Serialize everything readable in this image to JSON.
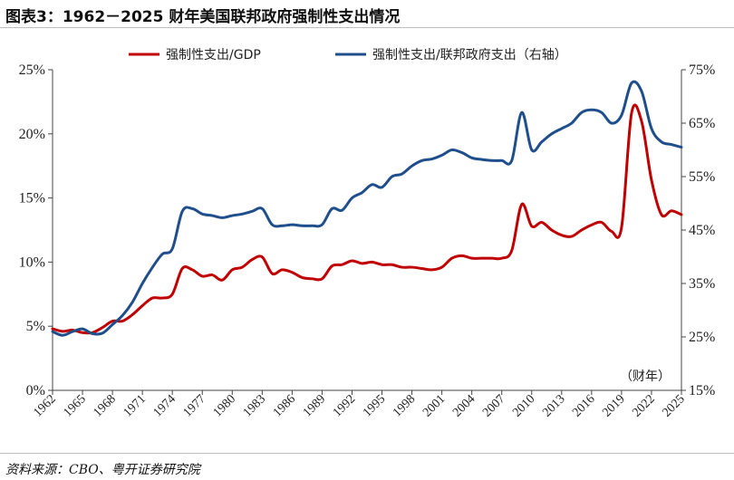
{
  "title": "图表3：1962－2025 财年美国联邦政府强制性支出情况",
  "source": "资料来源：CBO、粤开证券研究院",
  "colors": {
    "red": "#c00000",
    "blue": "#1f4e8c",
    "axis": "#444444"
  },
  "chart_data": {
    "type": "line",
    "x_unit_label": "（财年）",
    "x_ticks": [
      "1962",
      "1965",
      "1968",
      "1971",
      "1974",
      "1977",
      "1980",
      "1983",
      "1986",
      "1989",
      "1992",
      "1995",
      "1998",
      "2001",
      "2004",
      "2007",
      "2010",
      "2013",
      "2016",
      "2019",
      "2022",
      "2025"
    ],
    "y_left": {
      "ticks": [
        "0%",
        "5%",
        "10%",
        "15%",
        "20%",
        "25%"
      ],
      "lim": [
        0,
        25
      ]
    },
    "y_right": {
      "ticks": [
        "15%",
        "25%",
        "35%",
        "45%",
        "55%",
        "65%",
        "75%"
      ],
      "lim": [
        15,
        75
      ]
    },
    "x": [
      1962,
      1963,
      1964,
      1965,
      1966,
      1967,
      1968,
      1969,
      1970,
      1971,
      1972,
      1973,
      1974,
      1975,
      1976,
      1977,
      1978,
      1979,
      1980,
      1981,
      1982,
      1983,
      1984,
      1985,
      1986,
      1987,
      1988,
      1989,
      1990,
      1991,
      1992,
      1993,
      1994,
      1995,
      1996,
      1997,
      1998,
      1999,
      2000,
      2001,
      2002,
      2003,
      2004,
      2005,
      2006,
      2007,
      2008,
      2009,
      2010,
      2011,
      2012,
      2013,
      2014,
      2015,
      2016,
      2017,
      2018,
      2019,
      2020,
      2021,
      2022,
      2023,
      2024,
      2025
    ],
    "series": [
      {
        "name": "强制性支出/GDP",
        "axis": "left",
        "color": "#c00000",
        "values": [
          4.8,
          4.6,
          4.7,
          4.5,
          4.5,
          4.9,
          5.4,
          5.4,
          5.9,
          6.6,
          7.2,
          7.2,
          7.5,
          9.5,
          9.4,
          8.9,
          9.0,
          8.6,
          9.4,
          9.6,
          10.2,
          10.4,
          9.1,
          9.4,
          9.2,
          8.8,
          8.7,
          8.7,
          9.7,
          9.8,
          10.1,
          9.9,
          10.0,
          9.8,
          9.8,
          9.6,
          9.6,
          9.5,
          9.4,
          9.6,
          10.3,
          10.5,
          10.3,
          10.3,
          10.3,
          10.3,
          10.9,
          14.5,
          12.8,
          13.1,
          12.5,
          12.1,
          12.0,
          12.5,
          12.9,
          13.1,
          12.4,
          12.7,
          21.6,
          21.0,
          16.4,
          13.7,
          14.0,
          13.7
        ]
      },
      {
        "name": "强制性支出/联邦政府支出（右轴）",
        "axis": "right",
        "color": "#1f4e8c",
        "values": [
          26.0,
          25.3,
          26.0,
          26.5,
          25.6,
          25.7,
          27.3,
          29.0,
          31.5,
          35.0,
          38.0,
          40.5,
          41.5,
          48.5,
          49.0,
          48.0,
          47.7,
          47.3,
          47.7,
          48.0,
          48.5,
          49.0,
          46.0,
          45.8,
          46.0,
          45.8,
          45.8,
          46.0,
          49.0,
          48.7,
          51.0,
          52.0,
          53.5,
          53.0,
          55.0,
          55.5,
          57.0,
          58.0,
          58.3,
          59.0,
          60.0,
          59.5,
          58.5,
          58.2,
          58.0,
          58.0,
          58.0,
          67.0,
          60.0,
          61.5,
          63.0,
          64.0,
          65.0,
          67.0,
          67.5,
          67.0,
          65.0,
          66.5,
          72.5,
          71.0,
          64.0,
          61.5,
          61.0,
          60.5
        ]
      }
    ]
  }
}
